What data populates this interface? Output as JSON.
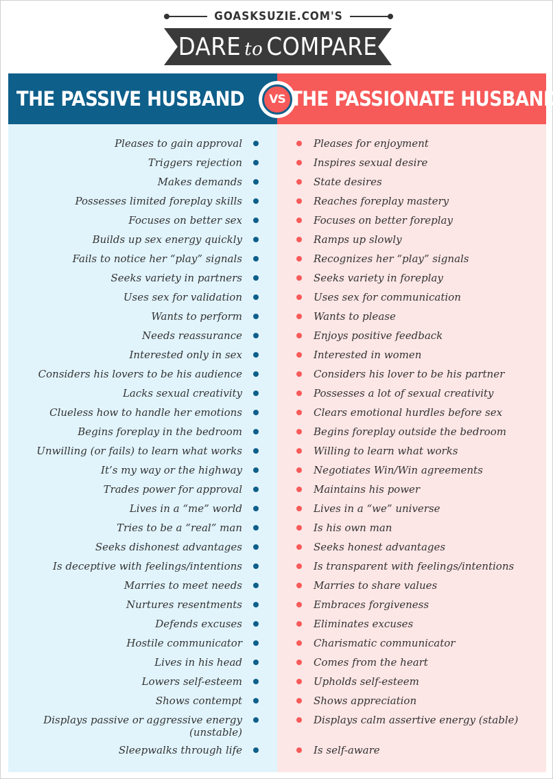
{
  "header": {
    "brand": "GOASKSUZIE.COM'S",
    "title_part1": "DARE",
    "title_to": "to",
    "title_part2": "COMPARE"
  },
  "columns": {
    "left_title": "THE PASSIVE HUSBAND",
    "right_title": "THE PASSIONATE HUSBAND",
    "vs_v": "V",
    "vs_s": "S"
  },
  "colors": {
    "passive": "#0e5f8a",
    "passionate": "#f65a59",
    "passive_bg": "#e1f4fc",
    "passionate_bg": "#fde6e6",
    "ribbon": "#3a3a3a"
  },
  "comparisons": [
    {
      "passive": "Pleases to gain approval",
      "passionate": "Pleases for enjoyment"
    },
    {
      "passive": "Triggers rejection",
      "passionate": "Inspires sexual desire"
    },
    {
      "passive": "Makes demands",
      "passionate": "State desires"
    },
    {
      "passive": "Possesses limited foreplay skills",
      "passionate": "Reaches foreplay mastery"
    },
    {
      "passive": "Focuses on better sex",
      "passionate": "Focuses on better foreplay"
    },
    {
      "passive": "Builds up sex energy quickly",
      "passionate": "Ramps up slowly"
    },
    {
      "passive": "Fails to notice her “play” signals",
      "passionate": "Recognizes her “play” signals"
    },
    {
      "passive": "Seeks variety in partners",
      "passionate": "Seeks variety in foreplay"
    },
    {
      "passive": "Uses sex for validation",
      "passionate": "Uses sex for communication"
    },
    {
      "passive": "Wants to perform",
      "passionate": "Wants to please"
    },
    {
      "passive": "Needs reassurance",
      "passionate": "Enjoys positive feedback"
    },
    {
      "passive": "Interested only in sex",
      "passionate": "Interested in women"
    },
    {
      "passive": "Considers his lovers to be his audience",
      "passionate": "Considers his lover to be his partner"
    },
    {
      "passive": "Lacks sexual creativity",
      "passionate": "Possesses a lot of sexual creativity"
    },
    {
      "passive": "Clueless how to handle her emotions",
      "passionate": "Clears emotional hurdles before sex"
    },
    {
      "passive": "Begins foreplay in the bedroom",
      "passionate": "Begins foreplay outside the bedroom"
    },
    {
      "passive": "Unwilling (or fails) to learn what works",
      "passionate": "Willing to learn what works"
    },
    {
      "passive": "It’s my way or the highway",
      "passionate": "Negotiates Win/Win agreements"
    },
    {
      "passive": "Trades power for approval",
      "passionate": "Maintains his power"
    },
    {
      "passive": "Lives in a “me” world",
      "passionate": "Lives in a “we” universe"
    },
    {
      "passive": "Tries to be a “real” man",
      "passionate": "Is his own man"
    },
    {
      "passive": "Seeks dishonest advantages",
      "passionate": "Seeks honest advantages"
    },
    {
      "passive": "Is deceptive with feelings/intentions",
      "passionate": "Is transparent with feelings/intentions"
    },
    {
      "passive": "Marries to meet needs",
      "passionate": "Marries to share values"
    },
    {
      "passive": "Nurtures resentments",
      "passionate": "Embraces forgiveness"
    },
    {
      "passive": "Defends excuses",
      "passionate": "Eliminates excuses"
    },
    {
      "passive": "Hostile communicator",
      "passionate": "Charismatic communicator"
    },
    {
      "passive": "Lives in his head",
      "passionate": "Comes from the heart"
    },
    {
      "passive": "Lowers self-esteem",
      "passionate": "Upholds self-esteem"
    },
    {
      "passive": "Shows contempt",
      "passionate": "Shows appreciation"
    },
    {
      "passive": "Displays passive or aggressive energy (unstable)",
      "passionate": "Displays calm assertive energy (stable)"
    },
    {
      "passive": "Sleepwalks through life",
      "passionate": "Is self-aware"
    }
  ]
}
